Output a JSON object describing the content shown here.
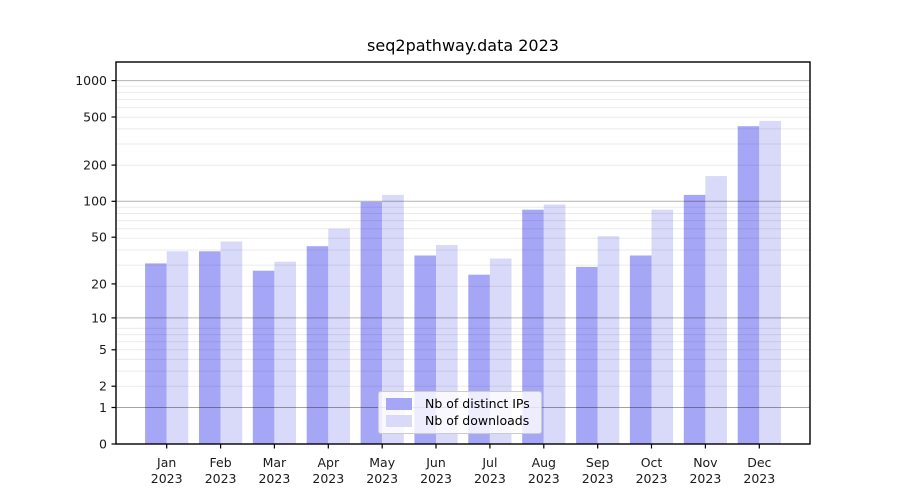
{
  "figure": {
    "background": "#ffffff"
  },
  "chart_data": {
    "type": "bar",
    "title": "seq2pathway.data 2023",
    "categories": [
      "Jan",
      "Feb",
      "Mar",
      "Apr",
      "May",
      "Jun",
      "Jul",
      "Aug",
      "Sep",
      "Oct",
      "Nov",
      "Dec"
    ],
    "year_label": "2023",
    "series": [
      {
        "name": "Nb of distinct IPs",
        "color": "#a6a6f7",
        "values": [
          30,
          38,
          26,
          42,
          99,
          35,
          24,
          85,
          28,
          35,
          113,
          420
        ]
      },
      {
        "name": "Nb of downloads",
        "color": "#d9d9fa",
        "values": [
          38,
          46,
          31,
          59,
          113,
          43,
          33,
          94,
          51,
          85,
          162,
          465
        ]
      }
    ],
    "xlabel": "",
    "ylabel": "",
    "y_scale": "log10(1+v)",
    "y_ticks": [
      0,
      1,
      2,
      5,
      10,
      20,
      50,
      100,
      200,
      500,
      1000
    ],
    "ylim": [
      0,
      1430
    ],
    "grid": "on",
    "grid_major_at": [
      1,
      10,
      100,
      1000
    ],
    "legend_position": "lower center"
  },
  "colors": {
    "grid_major": "rgba(0,0,0,0.30)",
    "grid_minor": "rgba(0,0,0,0.08)",
    "spine": "#000000",
    "tick": "#000000"
  }
}
